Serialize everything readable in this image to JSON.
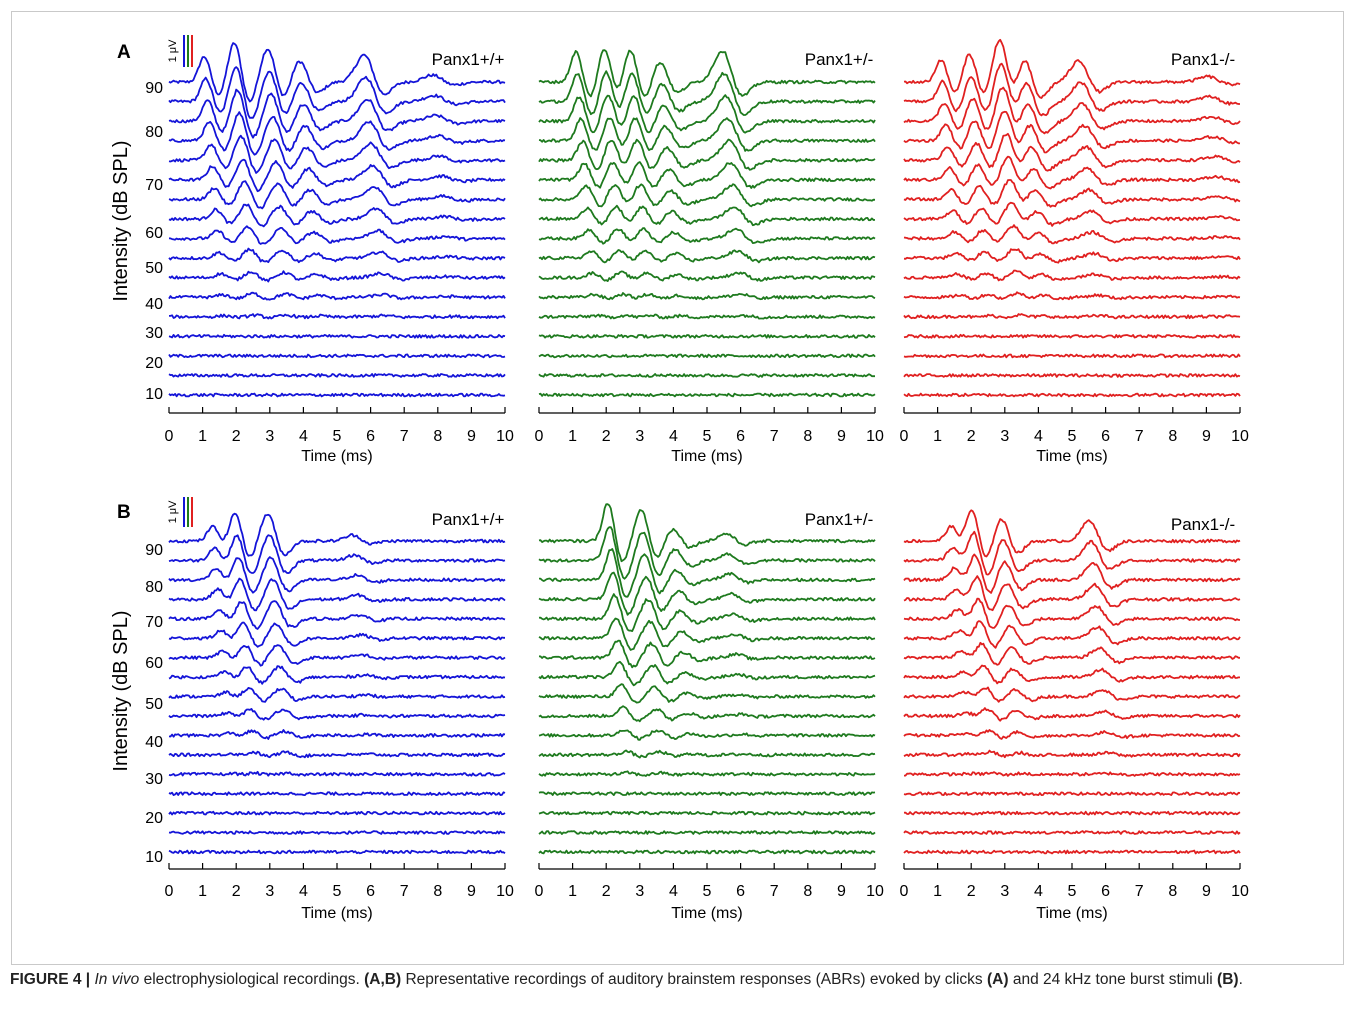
{
  "colors": {
    "wt": "#1414d8",
    "het": "#1e7a1e",
    "ko": "#e02020",
    "axis": "#000000"
  },
  "panels": [
    {
      "id": "A",
      "label": "A",
      "ylabel": "Intensity (dB SPL)",
      "scalebar_label": "1 μV",
      "ytick_labels": [
        "90",
        "80",
        "70",
        "60",
        "50",
        "40",
        "30",
        "20",
        "10"
      ],
      "xtick_labels": [
        "0",
        "1",
        "2",
        "3",
        "4",
        "5",
        "6",
        "7",
        "8",
        "9",
        "10"
      ],
      "xlabel": "Time (ms)"
    },
    {
      "id": "B",
      "label": "B",
      "ylabel": "Intensity (dB SPL)",
      "scalebar_label": "1 μV",
      "ytick_labels": [
        "90",
        "80",
        "70",
        "60",
        "50",
        "40",
        "30",
        "20",
        "10"
      ],
      "xtick_labels": [
        "0",
        "1",
        "2",
        "3",
        "4",
        "5",
        "6",
        "7",
        "8",
        "9",
        "10"
      ],
      "xlabel": "Time (ms)"
    }
  ],
  "chart_data": [
    {
      "type": "line",
      "panel": "A",
      "title": "Panx1+/+",
      "color": "#1414d8",
      "xlabel": "Time (ms)",
      "ylabel": "Intensity (dB SPL)",
      "xlim": [
        0,
        10
      ],
      "levels_db": [
        90,
        85,
        80,
        75,
        70,
        65,
        60,
        55,
        50,
        45,
        40,
        35,
        30,
        25,
        20,
        15,
        10
      ],
      "peaks_ms": [
        1.05,
        1.95,
        2.95,
        3.9,
        5.85,
        7.9
      ],
      "peak_amp_uv_at_90db": [
        1.6,
        2.5,
        2.2,
        1.5,
        1.9,
        0.5
      ]
    },
    {
      "type": "line",
      "panel": "A",
      "title": "Panx1+/-",
      "color": "#1e7a1e",
      "xlabel": "Time (ms)",
      "ylabel": "Intensity (dB SPL)",
      "xlim": [
        0,
        10
      ],
      "levels_db": [
        90,
        85,
        80,
        75,
        70,
        65,
        60,
        55,
        50,
        45,
        40,
        35,
        30,
        25,
        20,
        15,
        10
      ],
      "peaks_ms": [
        1.1,
        1.95,
        2.7,
        3.6,
        5.5
      ],
      "peak_amp_uv_at_90db": [
        1.9,
        2.1,
        2.4,
        1.5,
        2.2
      ]
    },
    {
      "type": "line",
      "panel": "A",
      "title": "Panx1-/-",
      "color": "#e02020",
      "xlabel": "Time (ms)",
      "ylabel": "Intensity (dB SPL)",
      "xlim": [
        0,
        10
      ],
      "levels_db": [
        90,
        85,
        80,
        75,
        70,
        65,
        60,
        55,
        50,
        45,
        40,
        35,
        30,
        25,
        20,
        15,
        10
      ],
      "peaks_ms": [
        1.1,
        1.95,
        2.85,
        3.55,
        5.25,
        9.1
      ],
      "peak_amp_uv_at_90db": [
        1.4,
        1.8,
        2.8,
        2.2,
        1.5,
        0.4
      ]
    },
    {
      "type": "line",
      "panel": "B",
      "title": "Panx1+/+",
      "color": "#1414d8",
      "xlabel": "Time (ms)",
      "ylabel": "Intensity (dB SPL)",
      "xlim": [
        0,
        10
      ],
      "levels_db": [
        90,
        85,
        80,
        75,
        70,
        65,
        60,
        55,
        50,
        45,
        40,
        35,
        30,
        25,
        20,
        15,
        10
      ],
      "peaks_ms": [
        1.3,
        1.95,
        2.95,
        5.5
      ],
      "peak_amp_uv_at_90db": [
        0.9,
        2.0,
        1.8,
        0.4
      ]
    },
    {
      "type": "line",
      "panel": "B",
      "title": "Panx1+/-",
      "color": "#1e7a1e",
      "xlabel": "Time (ms)",
      "ylabel": "Intensity (dB SPL)",
      "xlim": [
        0,
        10
      ],
      "levels_db": [
        90,
        85,
        80,
        75,
        70,
        65,
        60,
        55,
        50,
        45,
        40,
        35,
        30,
        25,
        20,
        15,
        10
      ],
      "peaks_ms": [
        2.05,
        3.05,
        4.0,
        5.6
      ],
      "peak_amp_uv_at_90db": [
        2.4,
        2.0,
        0.8,
        0.5
      ]
    },
    {
      "type": "line",
      "panel": "B",
      "title": "Panx1-/-",
      "color": "#e02020",
      "xlabel": "Time (ms)",
      "ylabel": "Intensity (dB SPL)",
      "xlim": [
        0,
        10
      ],
      "levels_db": [
        90,
        85,
        80,
        75,
        70,
        65,
        60,
        55,
        50,
        45,
        40,
        35,
        30,
        25,
        20,
        15,
        10
      ],
      "peaks_ms": [
        1.4,
        2.0,
        2.9,
        5.55
      ],
      "peak_amp_uv_at_90db": [
        0.9,
        2.3,
        1.5,
        1.4
      ]
    }
  ],
  "caption": {
    "label": "FIGURE 4 |",
    "italic": "In vivo",
    "text1": " electrophysiological recordings. ",
    "bold1": "(A,B)",
    "text2": " Representative recordings of auditory brainstem responses (ABRs) evoked by clicks ",
    "bold2": "(A)",
    "text3": " and 24 kHz tone burst stimuli ",
    "bold3": "(B)",
    "text4": "."
  }
}
